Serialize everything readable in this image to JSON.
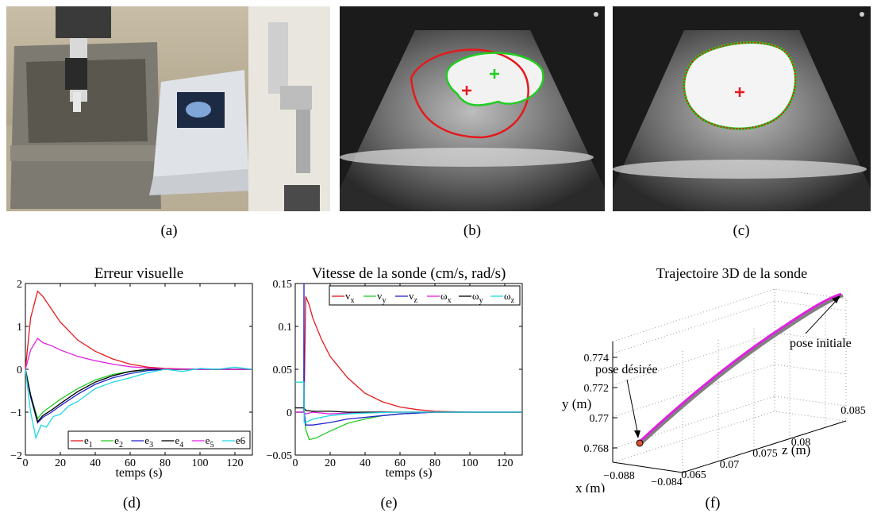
{
  "captions": [
    "(a)",
    "(b)",
    "(c)",
    "(d)",
    "(e)",
    "(f)"
  ],
  "images": {
    "a": "photo-robot-ultrasound-probe-water-tank",
    "b": "ultrasound-image-red-and-green-contours-not-aligned",
    "c": "ultrasound-image-contours-aligned"
  },
  "colors": {
    "red": "#e41a1c",
    "green": "#22cc22",
    "blue": "#2222cc",
    "black": "#000000",
    "magenta": "#e020e0",
    "cyan": "#20d8e0",
    "gray": "#808080"
  },
  "chart_data": [
    {
      "type": "line",
      "title": "Erreur visuelle",
      "xlabel": "temps (s)",
      "ylabel": "",
      "xlim": [
        0,
        130
      ],
      "ylim": [
        -2,
        2
      ],
      "xticks": [
        0,
        20,
        40,
        60,
        80,
        100,
        120
      ],
      "yticks": [
        -2,
        -1,
        0,
        1,
        2
      ],
      "legend": "bottom-right",
      "series": [
        {
          "name": "e1",
          "x": [
            0,
            3,
            7,
            10,
            15,
            20,
            30,
            40,
            50,
            60,
            70,
            80,
            90,
            100,
            130
          ],
          "y": [
            0,
            1.2,
            1.82,
            1.7,
            1.4,
            1.1,
            0.68,
            0.42,
            0.24,
            0.12,
            0.05,
            0.02,
            0.01,
            0,
            0
          ]
        },
        {
          "name": "e2",
          "x": [
            0,
            3,
            7,
            10,
            15,
            20,
            30,
            40,
            50,
            60,
            70,
            80,
            100,
            130
          ],
          "y": [
            0,
            -0.6,
            -1.15,
            -1.0,
            -0.85,
            -0.7,
            -0.45,
            -0.25,
            -0.12,
            -0.05,
            -0.02,
            0,
            0,
            0
          ]
        },
        {
          "name": "e3",
          "x": [
            0,
            3,
            7,
            10,
            15,
            20,
            30,
            40,
            50,
            60,
            70,
            80,
            100,
            130
          ],
          "y": [
            0,
            -0.65,
            -1.25,
            -1.12,
            -1.0,
            -0.85,
            -0.58,
            -0.35,
            -0.2,
            -0.1,
            -0.03,
            0,
            0,
            0
          ]
        },
        {
          "name": "e4",
          "x": [
            0,
            3,
            7,
            10,
            15,
            20,
            30,
            40,
            50,
            60,
            70,
            80,
            100,
            130
          ],
          "y": [
            0,
            -0.6,
            -1.22,
            -1.08,
            -0.95,
            -0.8,
            -0.52,
            -0.3,
            -0.15,
            -0.05,
            0,
            0,
            0,
            0
          ]
        },
        {
          "name": "e5",
          "x": [
            0,
            3,
            7,
            10,
            15,
            20,
            30,
            40,
            50,
            60,
            70,
            80,
            100,
            130
          ],
          "y": [
            0,
            0.45,
            0.72,
            0.62,
            0.55,
            0.45,
            0.3,
            0.2,
            0.12,
            0.06,
            0.03,
            0.01,
            0,
            0
          ]
        },
        {
          "name": "e6",
          "x": [
            0,
            3,
            6,
            9,
            12,
            16,
            20,
            25,
            30,
            35,
            40,
            50,
            60,
            70,
            80,
            90,
            100,
            110,
            120,
            130
          ],
          "y": [
            0,
            -1.0,
            -1.6,
            -1.3,
            -1.35,
            -1.1,
            -1.05,
            -0.85,
            -0.75,
            -0.6,
            -0.45,
            -0.3,
            -0.2,
            -0.08,
            0,
            -0.05,
            0.02,
            0,
            0.05,
            0
          ]
        }
      ]
    },
    {
      "type": "line",
      "title": "Vitesse de la sonde (cm/s, rad/s)",
      "xlabel": "temps (s)",
      "ylabel": "",
      "xlim": [
        0,
        130
      ],
      "ylim": [
        -0.05,
        0.15
      ],
      "xticks": [
        0,
        20,
        40,
        60,
        80,
        100,
        120
      ],
      "yticks": [
        -0.05,
        0,
        0.05,
        0.1,
        0.15
      ],
      "ytick_labels": [
        "−0.05",
        "0",
        "0.05",
        "0.1",
        "0.15"
      ],
      "legend": "top-right",
      "series": [
        {
          "name": "vx",
          "sub": "x",
          "base": "v",
          "x": [
            0,
            5,
            6,
            8,
            10,
            15,
            20,
            30,
            40,
            50,
            60,
            70,
            80,
            100,
            130
          ],
          "y": [
            0,
            0,
            0.135,
            0.125,
            0.11,
            0.085,
            0.065,
            0.04,
            0.022,
            0.012,
            0.006,
            0.003,
            0.001,
            0,
            0
          ]
        },
        {
          "name": "vy",
          "sub": "y",
          "base": "v",
          "x": [
            0,
            5,
            6,
            8,
            12,
            20,
            30,
            40,
            50,
            60,
            80,
            100,
            130
          ],
          "y": [
            0,
            0,
            -0.02,
            -0.032,
            -0.03,
            -0.022,
            -0.013,
            -0.008,
            -0.004,
            -0.002,
            0,
            0,
            0
          ]
        },
        {
          "name": "vz",
          "sub": "z",
          "base": "v",
          "x": [
            0,
            4.9,
            5,
            5.1,
            6,
            10,
            20,
            30,
            40,
            50,
            60,
            80,
            100,
            130
          ],
          "y": [
            0,
            0,
            0.15,
            0,
            -0.015,
            -0.015,
            -0.012,
            -0.008,
            -0.006,
            -0.004,
            -0.002,
            0,
            0,
            0
          ]
        },
        {
          "name": "ωx",
          "sub": "x",
          "base": "ω",
          "x": [
            0,
            5,
            6,
            10,
            20,
            30,
            40,
            60,
            80,
            130
          ],
          "y": [
            0,
            0,
            -0.002,
            0.0,
            -0.002,
            -0.001,
            0,
            0,
            0,
            0
          ]
        },
        {
          "name": "ωy",
          "sub": "y",
          "base": "ω",
          "x": [
            0,
            5,
            6,
            10,
            20,
            30,
            40,
            60,
            80,
            130
          ],
          "y": [
            0.005,
            0.005,
            0.002,
            0.001,
            0.001,
            0,
            0,
            0,
            0,
            0
          ]
        },
        {
          "name": "ωz",
          "sub": "z",
          "base": "ω",
          "x": [
            0,
            4.9,
            5,
            5.1,
            6,
            10,
            20,
            30,
            40,
            60,
            80,
            130
          ],
          "y": [
            0.035,
            0.035,
            0.035,
            -0.012,
            -0.012,
            -0.008,
            -0.004,
            -0.002,
            -0.001,
            0,
            0,
            0
          ]
        }
      ]
    },
    {
      "type": "line",
      "title": "Trajectoire 3D de la sonde",
      "xlabel": "x (m)",
      "ylabel": "y (m)",
      "zlabel": "z (m)",
      "x_ticks": [
        "−0.088",
        "−0.084"
      ],
      "y_ticks": [
        "0.768",
        "0.77",
        "0.772",
        "0.774"
      ],
      "z_ticks": [
        "0.065",
        "0.07",
        "0.075",
        "0.08",
        "0.085"
      ],
      "annotations": [
        "pose désirée",
        "pose initiale"
      ],
      "series": [
        {
          "name": "trajectory",
          "color": "magenta"
        },
        {
          "name": "reference",
          "color": "gray"
        }
      ]
    }
  ]
}
